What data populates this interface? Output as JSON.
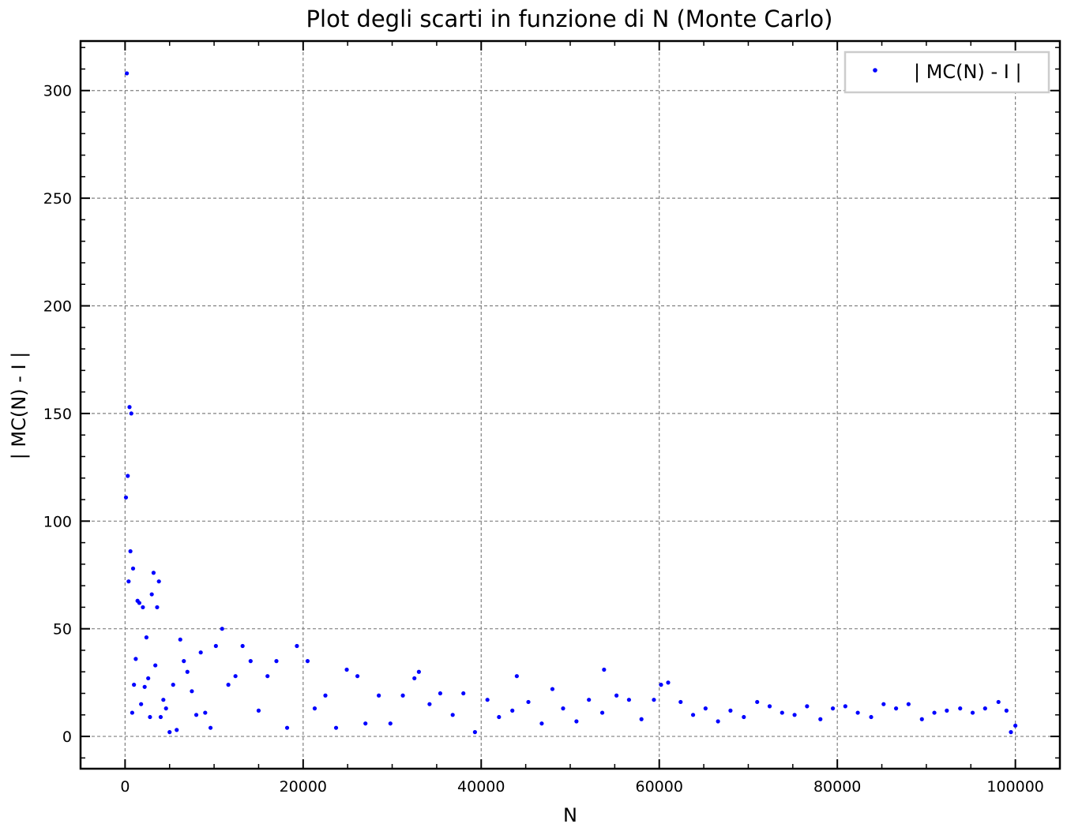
{
  "chart_data": {
    "type": "scatter",
    "title": "Plot degli scarti in funzione di N (Monte Carlo)",
    "xlabel": "N",
    "ylabel": "| MC(N) - I |",
    "xlim": [
      -5000,
      105000
    ],
    "ylim": [
      -15,
      323
    ],
    "x_ticks": [
      0,
      20000,
      40000,
      60000,
      80000,
      100000
    ],
    "x_tick_labels": [
      "0",
      "20000",
      "40000",
      "60000",
      "80000",
      "100000"
    ],
    "y_ticks": [
      0,
      50,
      100,
      150,
      200,
      250,
      300
    ],
    "y_tick_labels": [
      "0",
      "50",
      "100",
      "150",
      "200",
      "250",
      "300"
    ],
    "grid": true,
    "legend_position": "top-right",
    "series": [
      {
        "name": "| MC(N) - I |",
        "color": "#0000ff",
        "marker": "circle",
        "x": [
          100,
          200,
          300,
          400,
          500,
          600,
          700,
          800,
          900,
          1000,
          1200,
          1400,
          1600,
          1800,
          2000,
          2200,
          2400,
          2600,
          2800,
          3000,
          3200,
          3400,
          3600,
          3800,
          4000,
          4300,
          4600,
          5000,
          5400,
          5800,
          6200,
          6600,
          7000,
          7500,
          8000,
          8500,
          9000,
          9600,
          10200,
          10900,
          11600,
          12400,
          13200,
          14100,
          15000,
          16000,
          17000,
          18200,
          19300,
          20500,
          21300,
          22500,
          23700,
          24900,
          26100,
          27000,
          28500,
          29800,
          31200,
          32500,
          33000,
          34200,
          35400,
          36800,
          38000,
          39300,
          40700,
          42000,
          43500,
          44000,
          45300,
          46800,
          48000,
          49200,
          50700,
          52100,
          53600,
          53800,
          55200,
          56600,
          58000,
          59400,
          60200,
          61000,
          62400,
          63800,
          65200,
          66600,
          68000,
          69500,
          71000,
          72400,
          73800,
          75200,
          76600,
          78100,
          79500,
          80900,
          82300,
          83800,
          85200,
          86600,
          88000,
          89500,
          90900,
          92300,
          93800,
          95200,
          96600,
          98100,
          99000,
          99500,
          100000
        ],
        "y": [
          111,
          308,
          121,
          72,
          153,
          86,
          150,
          11,
          78,
          24,
          36,
          63,
          62,
          15,
          60,
          23,
          46,
          27,
          9,
          66,
          76,
          33,
          60,
          72,
          9,
          17,
          13,
          2,
          24,
          3,
          45,
          35,
          30,
          21,
          10,
          39,
          11,
          4,
          42,
          50,
          24,
          28,
          42,
          35,
          12,
          28,
          35,
          4,
          42,
          35,
          13,
          19,
          4,
          31,
          28,
          6,
          19,
          6,
          19,
          27,
          30,
          15,
          20,
          10,
          20,
          2,
          17,
          9,
          12,
          28,
          16,
          6,
          22,
          13,
          7,
          17,
          11,
          31,
          19,
          17,
          8,
          17,
          24,
          25,
          16,
          10,
          13,
          7,
          12,
          9,
          16,
          14,
          11,
          10,
          14,
          8,
          13,
          14,
          11,
          9,
          15,
          13,
          15,
          8,
          11,
          12,
          13,
          11,
          13,
          16,
          12,
          2,
          5
        ]
      }
    ]
  }
}
